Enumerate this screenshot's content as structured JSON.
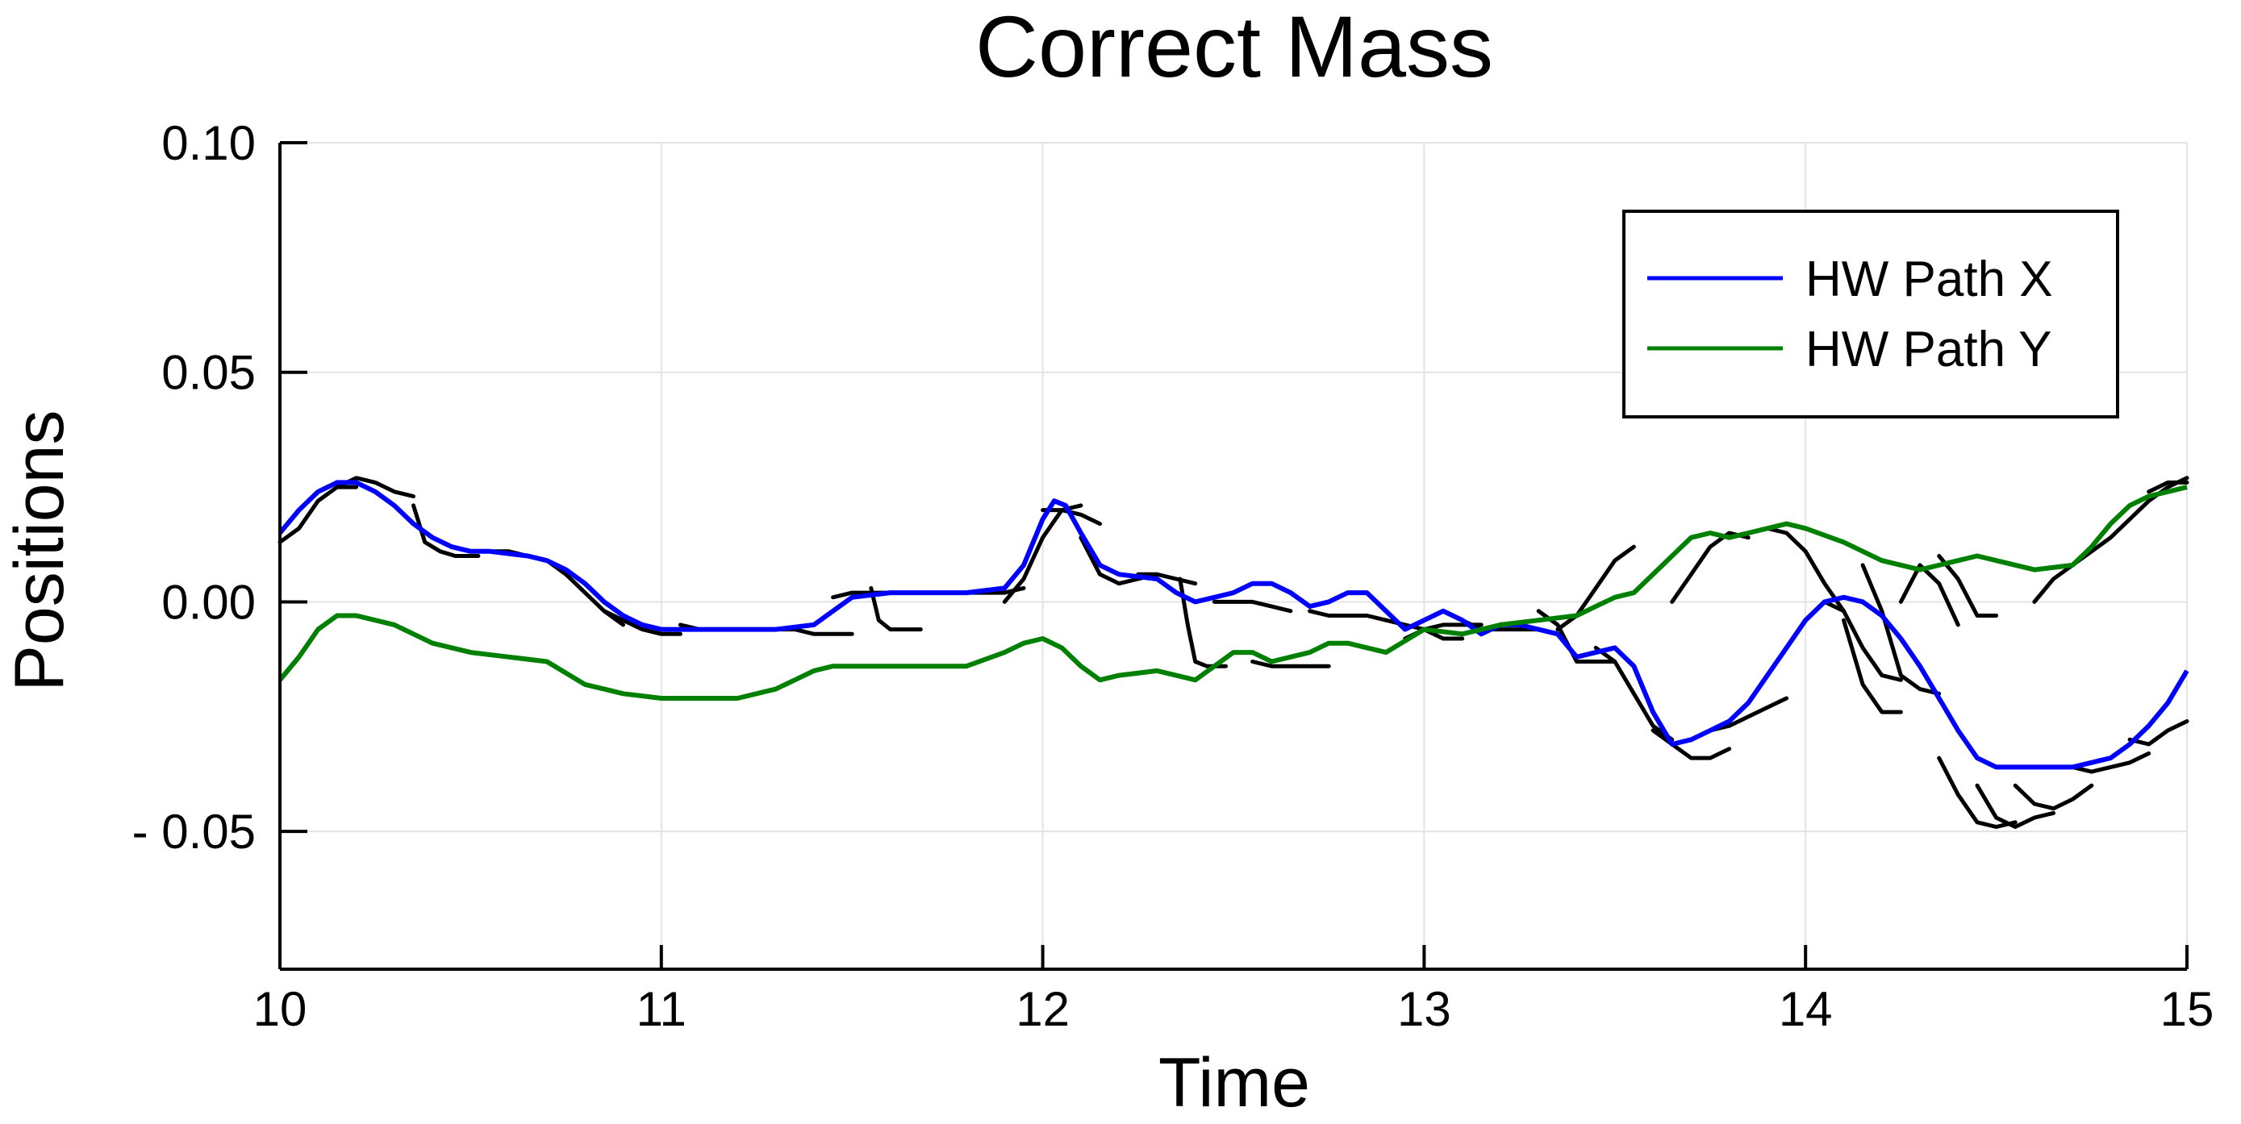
{
  "chart_data": {
    "type": "line",
    "title": "Correct Mass",
    "xlabel": "Time",
    "ylabel": "Positions",
    "xlim": [
      10,
      15
    ],
    "ylim": [
      -0.08,
      0.1
    ],
    "xticks": [
      10,
      11,
      12,
      13,
      14,
      15
    ],
    "xtick_labels": [
      "10",
      "11",
      "12",
      "13",
      "14",
      "15"
    ],
    "yticks": [
      0.1,
      0.05,
      0.0,
      -0.05
    ],
    "ytick_labels": [
      "0.10",
      "0.05",
      "0.00",
      "- 0.05"
    ],
    "grid": true,
    "legend": "top-right",
    "colors": {
      "x": "#0000ff",
      "y": "#008000",
      "predictions": "#000000"
    },
    "series": [
      {
        "name": "HW Path X",
        "color": "#0000ff",
        "x": [
          10.0,
          10.05,
          10.1,
          10.15,
          10.2,
          10.25,
          10.3,
          10.35,
          10.4,
          10.45,
          10.5,
          10.55,
          10.6,
          10.65,
          10.7,
          10.75,
          10.8,
          10.85,
          10.9,
          10.95,
          11.0,
          11.1,
          11.2,
          11.3,
          11.4,
          11.45,
          11.5,
          11.6,
          11.7,
          11.8,
          11.9,
          11.95,
          12.0,
          12.03,
          12.06,
          12.1,
          12.15,
          12.2,
          12.3,
          12.35,
          12.4,
          12.45,
          12.5,
          12.55,
          12.6,
          12.65,
          12.7,
          12.75,
          12.8,
          12.85,
          12.9,
          12.95,
          13.0,
          13.05,
          13.1,
          13.15,
          13.2,
          13.25,
          13.3,
          13.35,
          13.4,
          13.45,
          13.5,
          13.55,
          13.6,
          13.65,
          13.7,
          13.75,
          13.8,
          13.85,
          13.9,
          13.95,
          14.0,
          14.05,
          14.1,
          14.15,
          14.2,
          14.25,
          14.3,
          14.35,
          14.4,
          14.45,
          14.5,
          14.6,
          14.7,
          14.8,
          14.85,
          14.9,
          14.95,
          15.0
        ],
        "values": [
          0.015,
          0.02,
          0.024,
          0.026,
          0.026,
          0.024,
          0.021,
          0.017,
          0.014,
          0.012,
          0.011,
          0.011,
          0.0105,
          0.01,
          0.009,
          0.007,
          0.004,
          0.0,
          -0.003,
          -0.005,
          -0.006,
          -0.006,
          -0.006,
          -0.006,
          -0.005,
          -0.002,
          0.001,
          0.002,
          0.002,
          0.002,
          0.003,
          0.008,
          0.018,
          0.022,
          0.021,
          0.015,
          0.008,
          0.006,
          0.005,
          0.002,
          0.0,
          0.001,
          0.002,
          0.004,
          0.004,
          0.002,
          -0.001,
          0.0,
          0.002,
          0.002,
          -0.002,
          -0.006,
          -0.004,
          -0.002,
          -0.004,
          -0.007,
          -0.005,
          -0.005,
          -0.006,
          -0.007,
          -0.012,
          -0.011,
          -0.01,
          -0.014,
          -0.024,
          -0.031,
          -0.03,
          -0.028,
          -0.026,
          -0.022,
          -0.016,
          -0.01,
          -0.004,
          0.0,
          0.001,
          0.0,
          -0.003,
          -0.008,
          -0.014,
          -0.021,
          -0.028,
          -0.034,
          -0.036,
          -0.036,
          -0.036,
          -0.034,
          -0.031,
          -0.027,
          -0.022,
          -0.015
        ]
      },
      {
        "name": "HW Path Y",
        "color": "#008000",
        "x": [
          10.0,
          10.05,
          10.1,
          10.15,
          10.2,
          10.25,
          10.3,
          10.35,
          10.4,
          10.5,
          10.6,
          10.7,
          10.8,
          10.85,
          10.9,
          11.0,
          11.1,
          11.2,
          11.3,
          11.35,
          11.4,
          11.45,
          11.5,
          11.6,
          11.7,
          11.8,
          11.9,
          11.95,
          12.0,
          12.05,
          12.1,
          12.15,
          12.2,
          12.3,
          12.4,
          12.45,
          12.5,
          12.55,
          12.6,
          12.65,
          12.7,
          12.75,
          12.8,
          12.9,
          13.0,
          13.1,
          13.2,
          13.3,
          13.4,
          13.45,
          13.5,
          13.55,
          13.6,
          13.65,
          13.7,
          13.75,
          13.8,
          13.85,
          13.9,
          13.95,
          14.0,
          14.1,
          14.2,
          14.3,
          14.4,
          14.45,
          14.5,
          14.6,
          14.7,
          14.75,
          14.8,
          14.85,
          14.9,
          14.95,
          15.0
        ],
        "values": [
          -0.017,
          -0.012,
          -0.006,
          -0.003,
          -0.003,
          -0.004,
          -0.005,
          -0.007,
          -0.009,
          -0.011,
          -0.012,
          -0.013,
          -0.018,
          -0.019,
          -0.02,
          -0.021,
          -0.021,
          -0.021,
          -0.019,
          -0.017,
          -0.015,
          -0.014,
          -0.014,
          -0.014,
          -0.014,
          -0.014,
          -0.011,
          -0.009,
          -0.008,
          -0.01,
          -0.014,
          -0.017,
          -0.016,
          -0.015,
          -0.017,
          -0.014,
          -0.011,
          -0.011,
          -0.013,
          -0.012,
          -0.011,
          -0.009,
          -0.009,
          -0.011,
          -0.006,
          -0.007,
          -0.005,
          -0.004,
          -0.003,
          -0.001,
          0.001,
          0.002,
          0.006,
          0.01,
          0.014,
          0.015,
          0.014,
          0.015,
          0.016,
          0.017,
          0.016,
          0.013,
          0.009,
          0.007,
          0.009,
          0.01,
          0.009,
          0.007,
          0.008,
          0.012,
          0.017,
          0.021,
          0.023,
          0.024,
          0.025
        ]
      }
    ],
    "prediction_segments": [
      {
        "x": [
          10.0,
          10.05,
          10.1,
          10.15,
          10.2
        ],
        "values": [
          0.013,
          0.016,
          0.022,
          0.025,
          0.025
        ]
      },
      {
        "x": [
          10.15,
          10.2,
          10.25,
          10.3,
          10.35
        ],
        "values": [
          0.025,
          0.027,
          0.026,
          0.024,
          0.023
        ]
      },
      {
        "x": [
          10.35,
          10.38,
          10.42,
          10.46,
          10.52
        ],
        "values": [
          0.021,
          0.013,
          0.011,
          0.01,
          0.01
        ]
      },
      {
        "x": [
          10.5,
          10.55,
          10.6,
          10.65,
          10.7
        ],
        "values": [
          0.011,
          0.011,
          0.011,
          0.01,
          0.009
        ]
      },
      {
        "x": [
          10.7,
          10.75,
          10.8,
          10.85,
          10.9
        ],
        "values": [
          0.009,
          0.006,
          0.002,
          -0.002,
          -0.005
        ]
      },
      {
        "x": [
          10.85,
          10.9,
          10.95,
          11.0,
          11.05
        ],
        "values": [
          -0.002,
          -0.004,
          -0.006,
          -0.007,
          -0.007
        ]
      },
      {
        "x": [
          11.05,
          11.1,
          11.15,
          11.2,
          11.3
        ],
        "values": [
          -0.005,
          -0.006,
          -0.006,
          -0.006,
          -0.006
        ]
      },
      {
        "x": [
          11.3,
          11.35,
          11.4,
          11.45,
          11.5
        ],
        "values": [
          -0.006,
          -0.006,
          -0.007,
          -0.007,
          -0.007
        ]
      },
      {
        "x": [
          11.45,
          11.5,
          11.55,
          11.6,
          11.65
        ],
        "values": [
          0.001,
          0.002,
          0.002,
          0.002,
          0.002
        ]
      },
      {
        "x": [
          11.55,
          11.57,
          11.6,
          11.63,
          11.68
        ],
        "values": [
          0.003,
          -0.004,
          -0.006,
          -0.006,
          -0.006
        ]
      },
      {
        "x": [
          11.75,
          11.8,
          11.85,
          11.9,
          11.95
        ],
        "values": [
          0.002,
          0.002,
          0.002,
          0.002,
          0.003
        ]
      },
      {
        "x": [
          11.9,
          11.95,
          12.0,
          12.05,
          12.1
        ],
        "values": [
          0.0,
          0.005,
          0.014,
          0.02,
          0.021
        ]
      },
      {
        "x": [
          12.0,
          12.05,
          12.1,
          12.15
        ],
        "values": [
          0.02,
          0.02,
          0.019,
          0.017
        ]
      },
      {
        "x": [
          12.1,
          12.15,
          12.2,
          12.25,
          12.3
        ],
        "values": [
          0.014,
          0.006,
          0.004,
          0.005,
          0.006
        ]
      },
      {
        "x": [
          12.25,
          12.3,
          12.35,
          12.4
        ],
        "values": [
          0.006,
          0.006,
          0.005,
          0.004
        ]
      },
      {
        "x": [
          12.36,
          12.38,
          12.4,
          12.43,
          12.48
        ],
        "values": [
          0.005,
          -0.005,
          -0.013,
          -0.014,
          -0.014
        ]
      },
      {
        "x": [
          12.45,
          12.5,
          12.55,
          12.6,
          12.65
        ],
        "values": [
          0.0,
          0.0,
          0.0,
          -0.001,
          -0.002
        ]
      },
      {
        "x": [
          12.55,
          12.6,
          12.65,
          12.7,
          12.75
        ],
        "values": [
          -0.013,
          -0.014,
          -0.014,
          -0.014,
          -0.014
        ]
      },
      {
        "x": [
          12.7,
          12.75,
          12.8,
          12.85,
          12.9
        ],
        "values": [
          -0.002,
          -0.003,
          -0.003,
          -0.003,
          -0.004
        ]
      },
      {
        "x": [
          12.9,
          12.95,
          13.0,
          13.05,
          13.1
        ],
        "values": [
          -0.004,
          -0.005,
          -0.006,
          -0.008,
          -0.008
        ]
      },
      {
        "x": [
          12.95,
          13.0,
          13.05,
          13.1,
          13.15
        ],
        "values": [
          -0.008,
          -0.006,
          -0.005,
          -0.005,
          -0.005
        ]
      },
      {
        "x": [
          13.1,
          13.15,
          13.2,
          13.25,
          13.3
        ],
        "values": [
          -0.004,
          -0.006,
          -0.006,
          -0.006,
          -0.006
        ]
      },
      {
        "x": [
          13.3,
          13.35,
          13.4,
          13.45,
          13.5
        ],
        "values": [
          -0.002,
          -0.005,
          -0.013,
          -0.013,
          -0.013
        ]
      },
      {
        "x": [
          13.35,
          13.4,
          13.45,
          13.5,
          13.55
        ],
        "values": [
          -0.006,
          -0.003,
          0.003,
          0.009,
          0.012
        ]
      },
      {
        "x": [
          13.45,
          13.5,
          13.55,
          13.6,
          13.65
        ],
        "values": [
          -0.01,
          -0.013,
          -0.02,
          -0.027,
          -0.03
        ]
      },
      {
        "x": [
          13.6,
          13.65,
          13.7,
          13.75,
          13.8
        ],
        "values": [
          -0.028,
          -0.031,
          -0.034,
          -0.034,
          -0.032
        ]
      },
      {
        "x": [
          13.65,
          13.7,
          13.75,
          13.8,
          13.85
        ],
        "values": [
          0.0,
          0.006,
          0.012,
          0.015,
          0.014
        ]
      },
      {
        "x": [
          13.75,
          13.8,
          13.85,
          13.9,
          13.95
        ],
        "values": [
          -0.028,
          -0.027,
          -0.025,
          -0.023,
          -0.021
        ]
      },
      {
        "x": [
          13.9,
          13.95,
          14.0,
          14.05,
          14.1
        ],
        "values": [
          0.016,
          0.015,
          0.011,
          0.004,
          -0.002
        ]
      },
      {
        "x": [
          14.05,
          14.1,
          14.15,
          14.2,
          14.25
        ],
        "values": [
          0.0,
          -0.002,
          -0.01,
          -0.016,
          -0.017
        ]
      },
      {
        "x": [
          14.1,
          14.15,
          14.2,
          14.25
        ],
        "values": [
          -0.004,
          -0.018,
          -0.024,
          -0.024
        ]
      },
      {
        "x": [
          14.15,
          14.2,
          14.25,
          14.3,
          14.35
        ],
        "values": [
          0.008,
          -0.002,
          -0.016,
          -0.019,
          -0.02
        ]
      },
      {
        "x": [
          14.25,
          14.3,
          14.35,
          14.4
        ],
        "values": [
          0.0,
          0.008,
          0.004,
          -0.005
        ]
      },
      {
        "x": [
          14.35,
          14.4,
          14.45,
          14.5
        ],
        "values": [
          0.01,
          0.005,
          -0.003,
          -0.003
        ]
      },
      {
        "x": [
          14.35,
          14.4,
          14.45,
          14.5,
          14.55
        ],
        "values": [
          -0.034,
          -0.042,
          -0.048,
          -0.049,
          -0.048
        ]
      },
      {
        "x": [
          14.45,
          14.5,
          14.55,
          14.6,
          14.65
        ],
        "values": [
          -0.04,
          -0.047,
          -0.049,
          -0.047,
          -0.046
        ]
      },
      {
        "x": [
          14.55,
          14.6,
          14.65,
          14.7,
          14.75
        ],
        "values": [
          -0.04,
          -0.044,
          -0.045,
          -0.043,
          -0.04
        ]
      },
      {
        "x": [
          14.6,
          14.65,
          14.7,
          14.75,
          14.8
        ],
        "values": [
          0.0,
          0.005,
          0.008,
          0.011,
          0.014
        ]
      },
      {
        "x": [
          14.7,
          14.75,
          14.8,
          14.85,
          14.9
        ],
        "values": [
          -0.036,
          -0.037,
          -0.036,
          -0.035,
          -0.033
        ]
      },
      {
        "x": [
          14.8,
          14.85,
          14.9,
          14.95,
          15.0
        ],
        "values": [
          0.014,
          0.018,
          0.022,
          0.025,
          0.027
        ]
      },
      {
        "x": [
          14.85,
          14.9,
          14.95,
          15.0
        ],
        "values": [
          -0.03,
          -0.031,
          -0.028,
          -0.026
        ]
      },
      {
        "x": [
          14.9,
          14.95,
          15.0
        ],
        "values": [
          0.024,
          0.026,
          0.026
        ]
      }
    ]
  }
}
